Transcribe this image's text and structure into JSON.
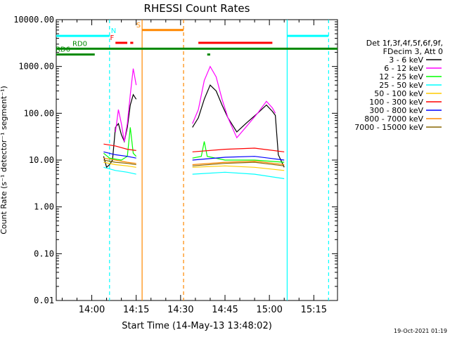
{
  "chart_data": {
    "type": "line",
    "title": "RHESSI Count Rates",
    "xlabel": "Start Time (14-May-13 13:48:02)",
    "ylabel": "Count Rate (s⁻¹ detector⁻¹ segment⁻¹)",
    "y_scale": "log",
    "ylim": [
      0.01,
      10000
    ],
    "xlim": [
      "13:48",
      "15:23"
    ],
    "y_ticks": [
      "0.01",
      "0.10",
      "1.00",
      "10.00",
      "100.00",
      "1000.00",
      "10000.00"
    ],
    "x_ticks": [
      "14:00",
      "14:15",
      "14:30",
      "14:45",
      "15:00",
      "15:15"
    ],
    "timestamp": "19-Oct-2021 01:19",
    "legend_header": [
      "Det 1f,3f,4f,5f,6f,9f,",
      "FDecim 3, Att 0"
    ],
    "series": [
      {
        "name": "3 - 6 keV",
        "color": "#000000",
        "segments": [
          [
            [
              "14:04",
              12
            ],
            [
              "14:05",
              7
            ],
            [
              "14:06",
              8
            ],
            [
              "14:07",
              10
            ],
            [
              "14:08",
              50
            ],
            [
              "14:09",
              60
            ],
            [
              "14:10",
              35
            ],
            [
              "14:11",
              25
            ],
            [
              "14:12",
              50
            ],
            [
              "14:13",
              150
            ],
            [
              "14:14",
              250
            ],
            [
              "14:15",
              200
            ]
          ],
          [
            [
              "14:34",
              50
            ],
            [
              "14:36",
              80
            ],
            [
              "14:38",
              200
            ],
            [
              "14:40",
              400
            ],
            [
              "14:42",
              300
            ],
            [
              "14:44",
              150
            ],
            [
              "14:46",
              80
            ],
            [
              "14:49",
              40
            ],
            [
              "14:52",
              60
            ],
            [
              "14:56",
              100
            ],
            [
              "14:59",
              150
            ],
            [
              "15:01",
              110
            ],
            [
              "15:02",
              90
            ],
            [
              "15:03",
              13
            ],
            [
              "15:05",
              7
            ]
          ]
        ]
      },
      {
        "name": "6 - 12 keV",
        "color": "#ff00ff",
        "segments": [
          [
            [
              "14:08",
              40
            ],
            [
              "14:09",
              120
            ],
            [
              "14:10",
              60
            ],
            [
              "14:11",
              25
            ],
            [
              "14:12",
              60
            ],
            [
              "14:13",
              250
            ],
            [
              "14:14",
              900
            ],
            [
              "14:15",
              400
            ]
          ],
          [
            [
              "14:34",
              60
            ],
            [
              "14:36",
              120
            ],
            [
              "14:38",
              500
            ],
            [
              "14:40",
              1000
            ],
            [
              "14:42",
              600
            ],
            [
              "14:44",
              200
            ],
            [
              "14:46",
              80
            ],
            [
              "14:49",
              30
            ],
            [
              "14:52",
              50
            ],
            [
              "14:56",
              100
            ],
            [
              "14:59",
              180
            ],
            [
              "15:01",
              130
            ],
            [
              "15:02",
              100
            ]
          ]
        ]
      },
      {
        "name": "12 - 25 keV",
        "color": "#00ff00",
        "segments": [
          [
            [
              "14:04",
              14
            ],
            [
              "14:06",
              11
            ],
            [
              "14:10",
              10
            ],
            [
              "14:12",
              12
            ],
            [
              "14:13",
              50
            ],
            [
              "14:14",
              14
            ],
            [
              "14:15",
              12
            ]
          ],
          [
            [
              "14:34",
              11
            ],
            [
              "14:37",
              12
            ],
            [
              "14:38",
              25
            ],
            [
              "14:39",
              12
            ],
            [
              "14:45",
              10
            ],
            [
              "14:55",
              10
            ],
            [
              "15:05",
              9
            ]
          ]
        ]
      },
      {
        "name": "25 - 50 keV",
        "color": "#00ffff",
        "segments": [
          [
            [
              "14:04",
              7
            ],
            [
              "14:08",
              6
            ],
            [
              "14:12",
              5.5
            ],
            [
              "14:15",
              5
            ]
          ],
          [
            [
              "14:34",
              5
            ],
            [
              "14:45",
              5.5
            ],
            [
              "14:55",
              5
            ],
            [
              "15:05",
              4
            ]
          ]
        ]
      },
      {
        "name": "50 - 100 keV",
        "color": "#ffcc00",
        "segments": [
          [
            [
              "14:04",
              9
            ],
            [
              "14:08",
              8
            ],
            [
              "14:12",
              7.5
            ],
            [
              "14:15",
              7
            ]
          ],
          [
            [
              "14:34",
              7
            ],
            [
              "14:45",
              7.5
            ],
            [
              "14:55",
              7
            ],
            [
              "15:05",
              6
            ]
          ]
        ]
      },
      {
        "name": "100 - 300 keV",
        "color": "#ff0000",
        "segments": [
          [
            [
              "14:04",
              22
            ],
            [
              "14:08",
              20
            ],
            [
              "14:12",
              17
            ],
            [
              "14:15",
              16
            ]
          ],
          [
            [
              "14:34",
              15
            ],
            [
              "14:45",
              17
            ],
            [
              "14:55",
              18
            ],
            [
              "15:05",
              15
            ]
          ]
        ]
      },
      {
        "name": "300 - 800 keV",
        "color": "#0000ff",
        "segments": [
          [
            [
              "14:04",
              15
            ],
            [
              "14:08",
              13
            ],
            [
              "14:12",
              12
            ],
            [
              "14:15",
              11
            ]
          ],
          [
            [
              "14:34",
              10
            ],
            [
              "14:45",
              11.5
            ],
            [
              "14:55",
              12
            ],
            [
              "15:05",
              10
            ]
          ]
        ]
      },
      {
        "name": "800 - 7000 keV",
        "color": "#ff8800",
        "segments": [
          [
            [
              "14:04",
              11
            ],
            [
              "14:08",
              10
            ],
            [
              "14:12",
              9
            ],
            [
              "14:15",
              8.5
            ]
          ],
          [
            [
              "14:34",
              8
            ],
            [
              "14:45",
              9
            ],
            [
              "14:55",
              9.5
            ],
            [
              "15:05",
              8
            ]
          ]
        ]
      },
      {
        "name": "7000 - 15000 keV",
        "color": "#886600",
        "segments": [
          [
            [
              "14:04",
              10
            ],
            [
              "14:08",
              9
            ],
            [
              "14:12",
              8.5
            ],
            [
              "14:15",
              8
            ]
          ],
          [
            [
              "14:34",
              7.5
            ],
            [
              "14:45",
              8.5
            ],
            [
              "14:55",
              9
            ],
            [
              "15:05",
              7.5
            ]
          ]
        ]
      }
    ],
    "vertical_lines": [
      {
        "t": "14:06",
        "color": "#00ffff",
        "style": "dashed"
      },
      {
        "t": "14:17",
        "color": "#ff8800",
        "style": "solid"
      },
      {
        "t": "14:31",
        "color": "#ff8800",
        "style": "dashed"
      },
      {
        "t": "15:06",
        "color": "#00ffff",
        "style": "solid"
      },
      {
        "t": "15:20",
        "color": "#00ffff",
        "style": "dashed"
      }
    ],
    "flag_bars": [
      {
        "label": "N",
        "color": "#00ffff",
        "y": 4500,
        "t0": "13:48",
        "t1": "14:06"
      },
      {
        "label": "",
        "color": "#00ffff",
        "y": 4500,
        "t0": "15:06",
        "t1": "15:20"
      },
      {
        "label": "S",
        "color": "#ff8800",
        "y": 6000,
        "t0": "14:17",
        "t1": "14:31"
      },
      {
        "label": "F",
        "color": "#ff0000",
        "y": 3200,
        "t0": "14:08",
        "t1": "14:12"
      },
      {
        "label": "",
        "color": "#ff0000",
        "y": 3200,
        "t0": "14:13",
        "t1": "14:14"
      },
      {
        "label": "",
        "color": "#ff0000",
        "y": 3200,
        "t0": "14:36",
        "t1": "15:01"
      },
      {
        "label": "RD0",
        "color": "#008800",
        "y": 2400,
        "t0": "13:48",
        "t1": "15:23"
      },
      {
        "label": "RD6",
        "color": "#008800",
        "y": 1800,
        "t0": "13:48",
        "t1": "14:01"
      },
      {
        "label": "",
        "color": "#008800",
        "y": 1800,
        "t0": "14:39",
        "t1": "14:40"
      }
    ]
  }
}
